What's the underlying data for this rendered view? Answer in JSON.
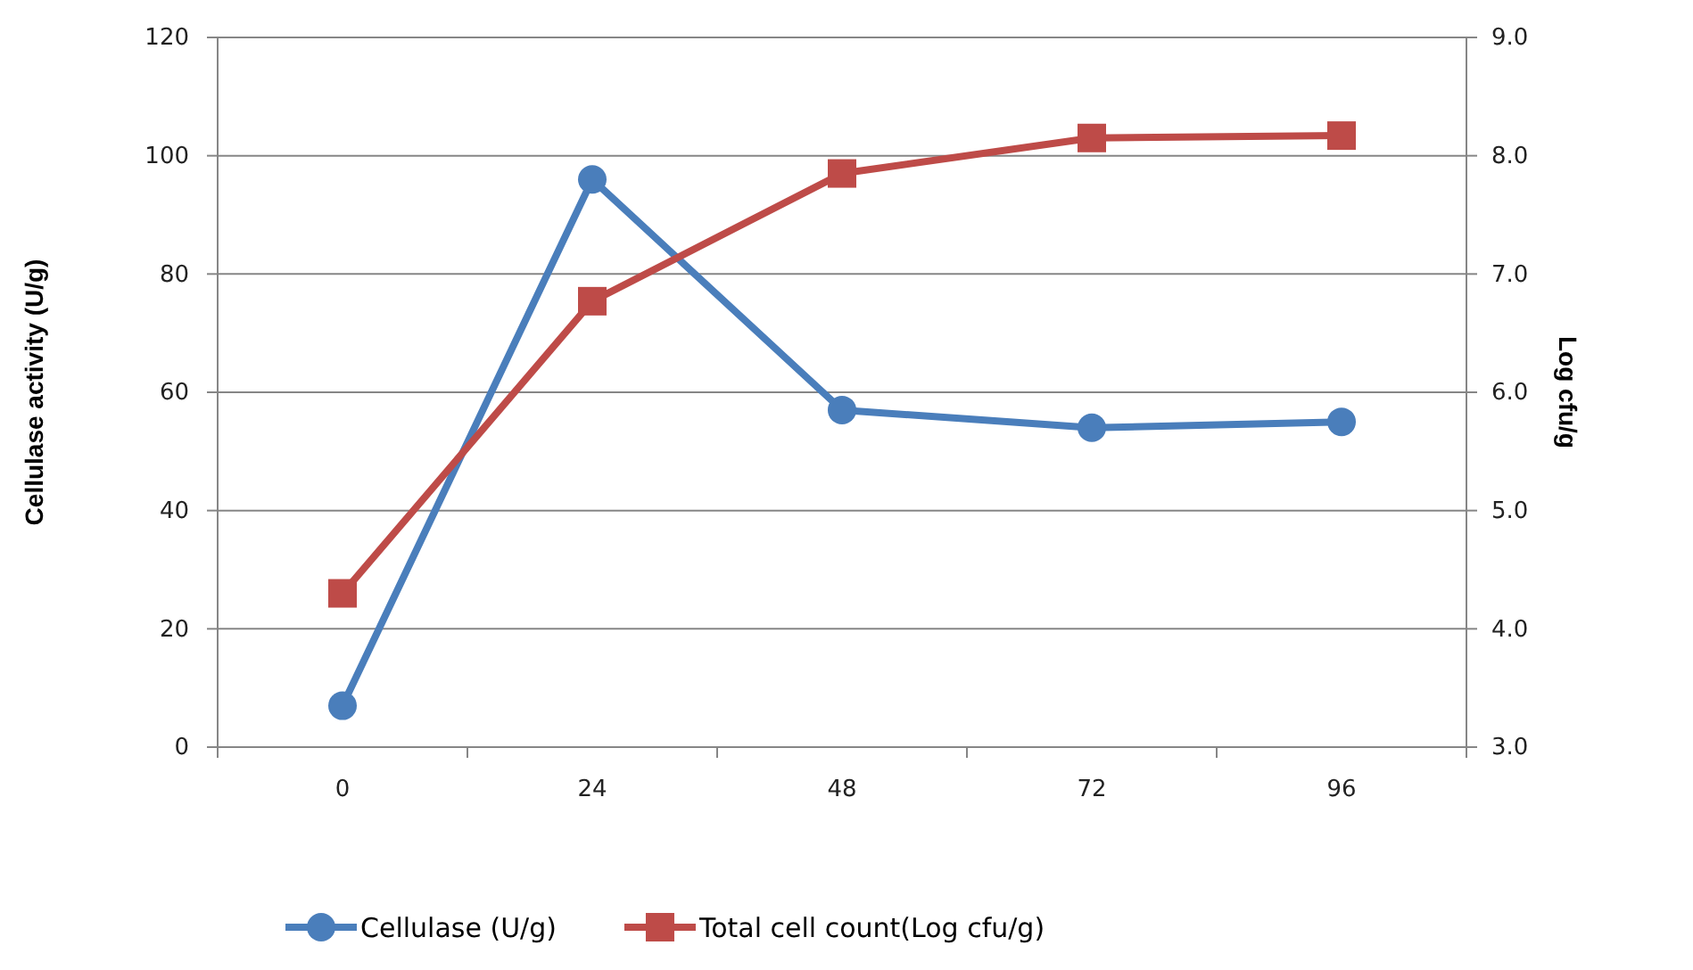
{
  "chart_data": {
    "type": "line",
    "categories": [
      "0",
      "24",
      "48",
      "72",
      "96"
    ],
    "ylabel": "Cellulase activity (U/g)",
    "y2label": "Log cfu/g",
    "ylim": [
      0,
      120
    ],
    "yticks": [
      0,
      20,
      40,
      60,
      80,
      100,
      120
    ],
    "y2lim": [
      3,
      9
    ],
    "y2ticks": [
      {
        "value": 3,
        "label": "3.0"
      },
      {
        "value": 4,
        "label": "4.0"
      },
      {
        "value": 5,
        "label": "5.0"
      },
      {
        "value": 6,
        "label": "6.0"
      },
      {
        "value": 7,
        "label": "7.0"
      },
      {
        "value": 8,
        "label": "8.0"
      },
      {
        "value": 9,
        "label": "9.0"
      }
    ],
    "series": [
      {
        "name": "Cellulase (U/g)",
        "color": "#4a7ebb",
        "marker": "circle",
        "values": [
          7,
          96,
          57,
          54,
          55
        ]
      },
      {
        "name": "Total cell count(Log cfu/g)",
        "color": "#be4b48",
        "marker": "square",
        "axis": "y2",
        "values": [
          4.3,
          6.77,
          7.85,
          8.15,
          8.17
        ]
      }
    ],
    "grid": "y",
    "legend": "bottom",
    "line_style": "solid"
  }
}
